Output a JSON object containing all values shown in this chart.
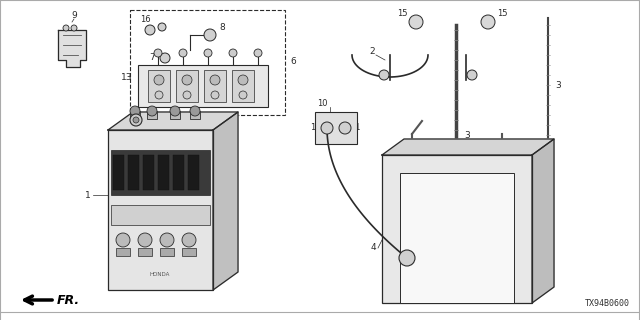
{
  "diagram_code": "TX94B0600",
  "background_color": "#ffffff",
  "line_color": "#2a2a2a",
  "fig_width": 6.4,
  "fig_height": 3.2,
  "dpi": 100,
  "border_color": "#cccccc"
}
